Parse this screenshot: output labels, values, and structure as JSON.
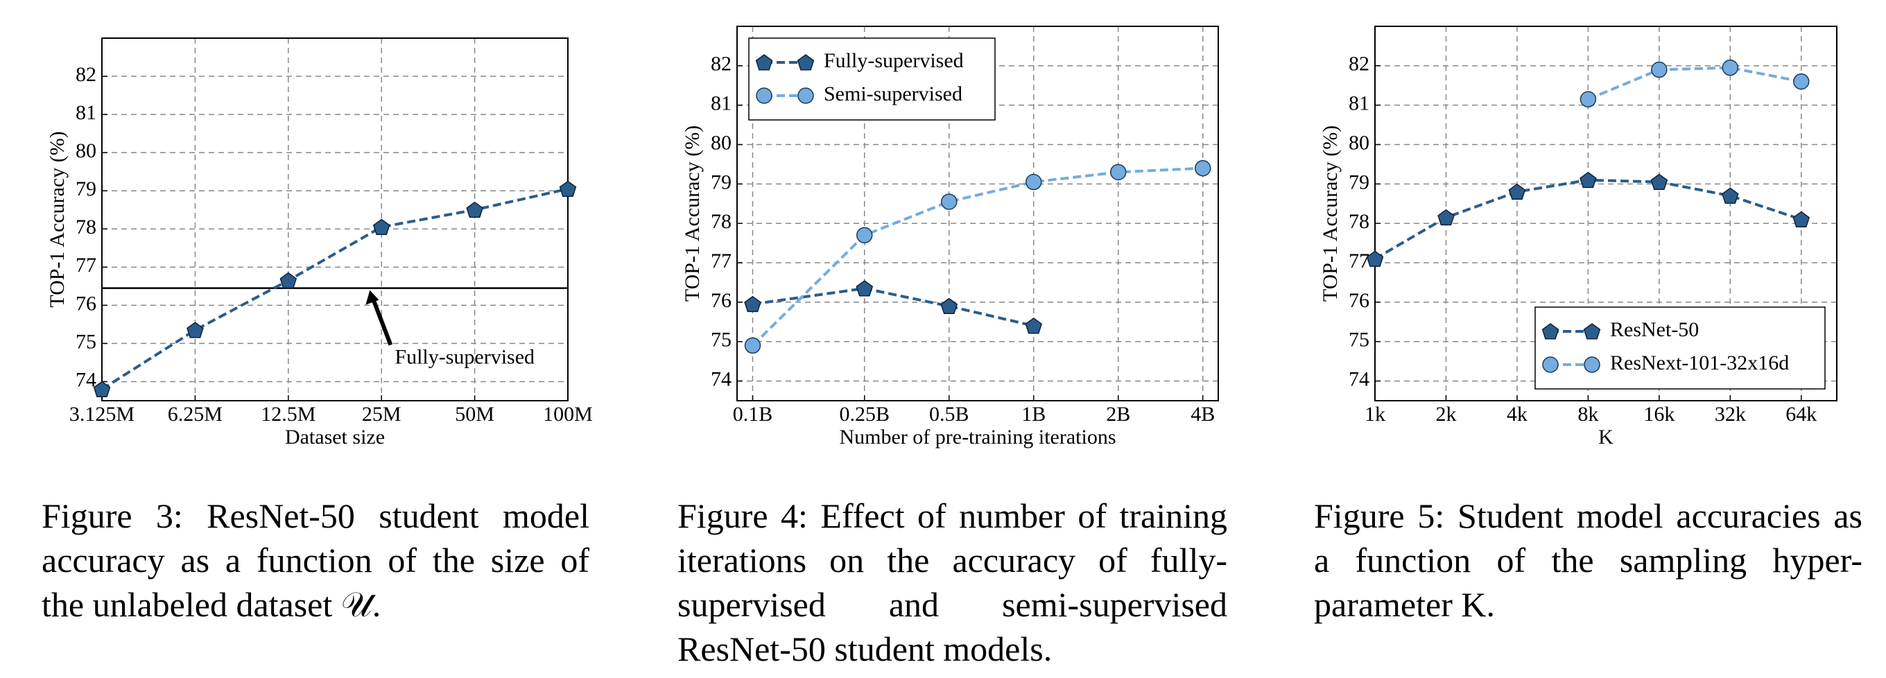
{
  "chart_data": [
    {
      "type": "line",
      "xlabel": "Dataset size",
      "ylabel": "TOP-1 Accuracy (%)",
      "caption": "Figure 3: ResNet-50 student model accuracy as a function of the size of the unlabeled dataset 𝒰.",
      "x": [
        3125000,
        6250000,
        12500000,
        25000000,
        50000000,
        100000000
      ],
      "xscale": "log",
      "xlim": [
        3125000,
        100000000
      ],
      "xticks": [
        {
          "value": 3125000,
          "label": "3.125M"
        },
        {
          "value": 6250000,
          "label": "6.25M"
        },
        {
          "value": 12500000,
          "label": "12.5M"
        },
        {
          "value": 25000000,
          "label": "25M"
        },
        {
          "value": 50000000,
          "label": "50M"
        },
        {
          "value": 100000000,
          "label": "100M"
        }
      ],
      "ylim": [
        73.5,
        83
      ],
      "yticks": [
        74,
        75,
        76,
        77,
        78,
        79,
        80,
        81,
        82
      ],
      "grid": true,
      "series": [
        {
          "color": "#2b5d8c",
          "marker": "pentagon",
          "values": [
            73.8,
            75.35,
            76.65,
            78.05,
            78.5,
            79.05
          ]
        }
      ],
      "hline": {
        "value": 76.45,
        "color": "#000000"
      },
      "annotation": "Fully-supervised"
    },
    {
      "type": "line",
      "xlabel": "Number of pre-training iterations",
      "ylabel": "TOP-1 Accuracy (%)",
      "caption": "Figure 4: Effect of number of training iterations on the accuracy of fully-supervised and semi-supervised ResNet-50 student models.",
      "x": [
        100000000,
        250000000,
        500000000,
        1000000000,
        2000000000,
        4000000000
      ],
      "xscale": "log",
      "xlim": [
        88000000,
        4540000000
      ],
      "xticks": [
        {
          "value": 100000000,
          "label": "0.1B"
        },
        {
          "value": 250000000,
          "label": "0.25B"
        },
        {
          "value": 500000000,
          "label": "0.5B"
        },
        {
          "value": 1000000000,
          "label": "1B"
        },
        {
          "value": 2000000000,
          "label": "2B"
        },
        {
          "value": 4000000000,
          "label": "4B"
        }
      ],
      "ylim": [
        73.5,
        83
      ],
      "yticks": [
        74,
        75,
        76,
        77,
        78,
        79,
        80,
        81,
        82
      ],
      "grid": true,
      "legend": "upper left",
      "series": [
        {
          "name": "Fully-supervised",
          "color": "#2b5d8c",
          "marker": "pentagon",
          "values": [
            75.95,
            76.35,
            75.9,
            75.4,
            null,
            null
          ]
        },
        {
          "name": "Semi-supervised",
          "color": "#74acdf",
          "marker": "circle",
          "values": [
            74.9,
            77.7,
            78.55,
            79.05,
            79.3,
            79.4
          ]
        }
      ]
    },
    {
      "type": "line",
      "xlabel": "K",
      "ylabel": "TOP-1 Accuracy (%)",
      "caption": "Figure 5: Student model accuracies as a function of the sampling hyper-parameter K.",
      "x": [
        1000,
        2000,
        4000,
        8000,
        16000,
        32000,
        64000
      ],
      "xscale": "log",
      "xlim": [
        1000,
        90500
      ],
      "xticks": [
        {
          "value": 1000,
          "label": "1k"
        },
        {
          "value": 2000,
          "label": "2k"
        },
        {
          "value": 4000,
          "label": "4k"
        },
        {
          "value": 8000,
          "label": "8k"
        },
        {
          "value": 16000,
          "label": "16k"
        },
        {
          "value": 32000,
          "label": "32k"
        },
        {
          "value": 64000,
          "label": "64k"
        }
      ],
      "ylim": [
        73.5,
        83
      ],
      "yticks": [
        74,
        75,
        76,
        77,
        78,
        79,
        80,
        81,
        82
      ],
      "grid": true,
      "legend": "lower right",
      "series": [
        {
          "name": "ResNet-50",
          "color": "#2b5d8c",
          "marker": "pentagon",
          "values": [
            77.1,
            78.15,
            78.8,
            79.1,
            79.05,
            78.7,
            78.1
          ]
        },
        {
          "name": "ResNext-101-32x16d",
          "color": "#74acdf",
          "marker": "circle",
          "values": [
            null,
            null,
            null,
            81.15,
            81.9,
            81.95,
            81.6
          ]
        }
      ]
    }
  ]
}
